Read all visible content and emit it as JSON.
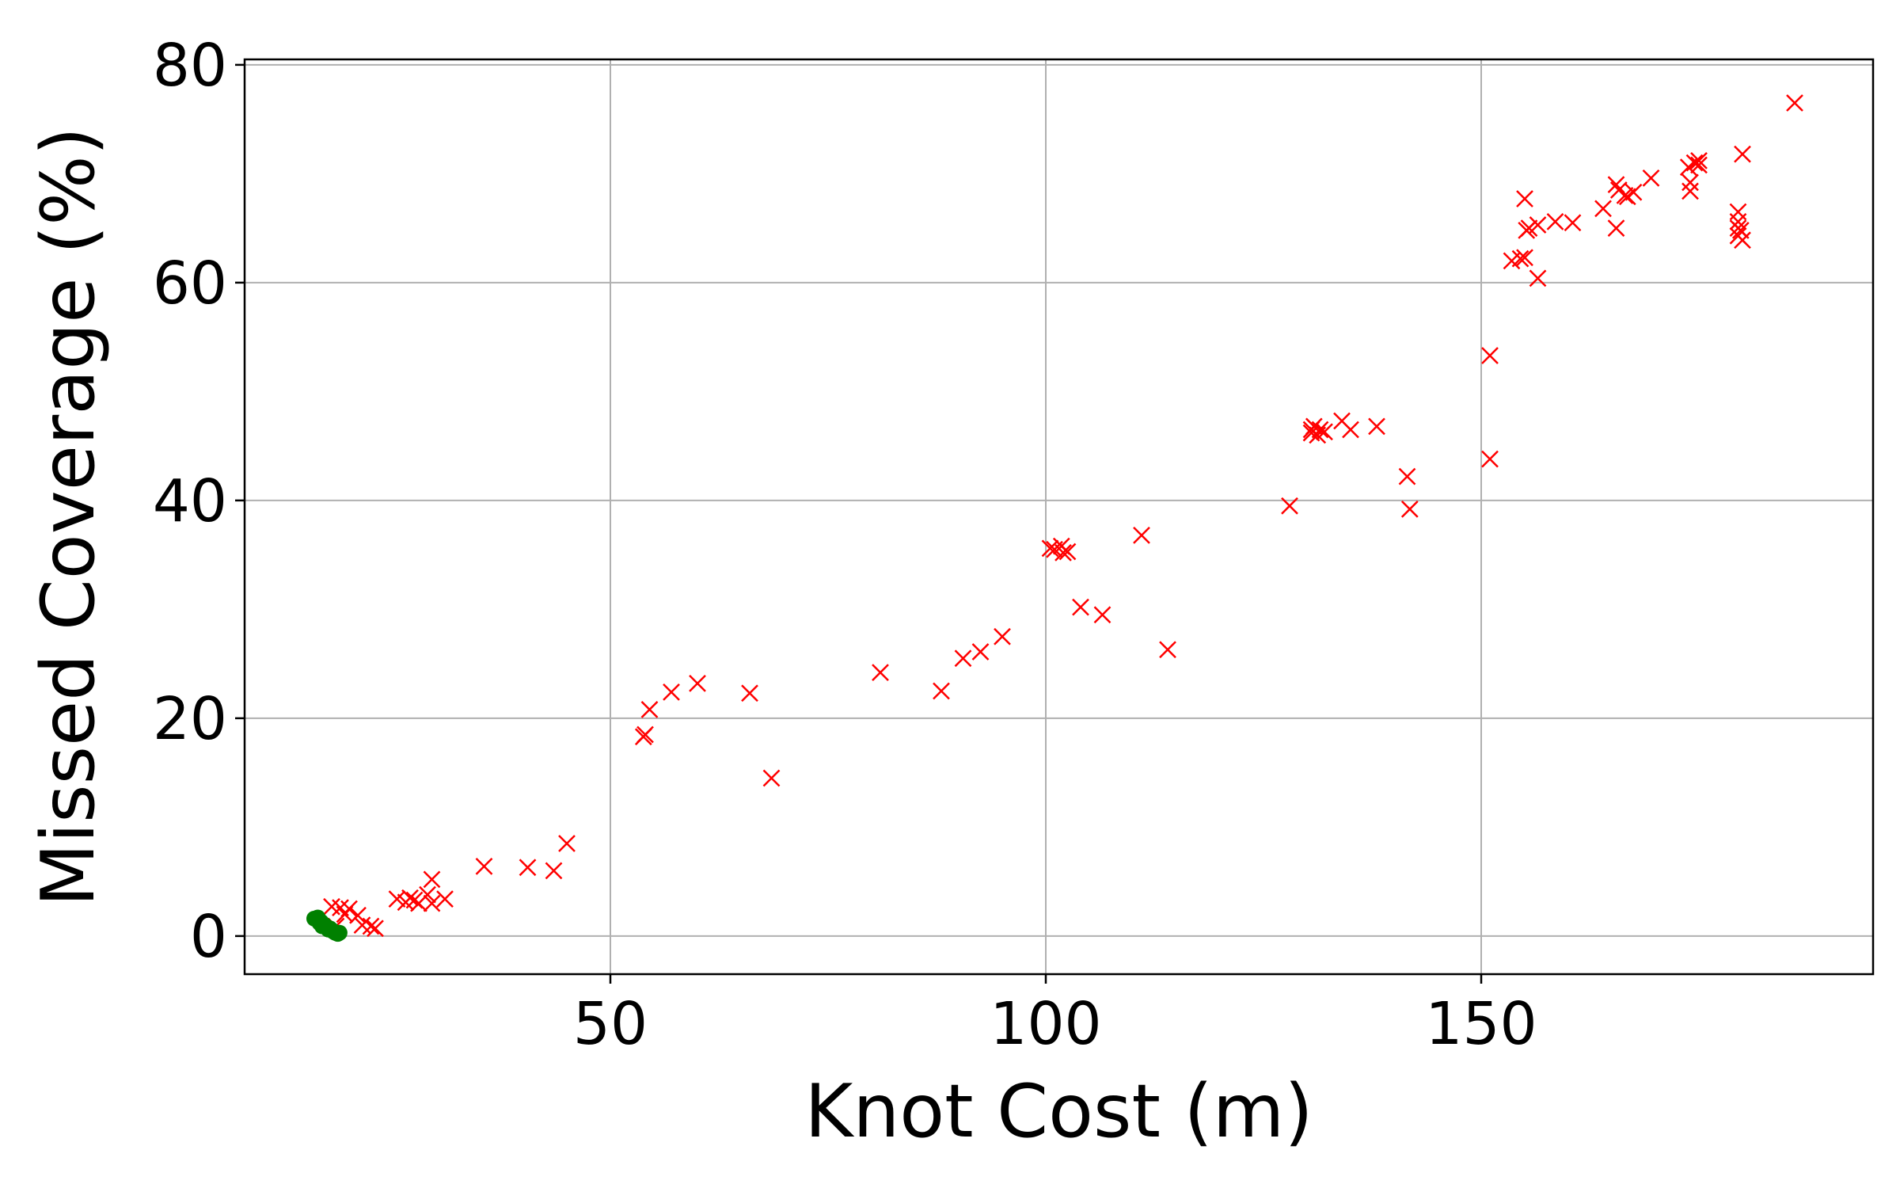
{
  "chart_data": {
    "type": "scatter",
    "xlabel": "Knot Cost (m)",
    "ylabel": "Missed Coverage (%)",
    "xlim": [
      8,
      195
    ],
    "ylim": [
      -3.5,
      80.5
    ],
    "xticks": [
      50,
      100,
      150
    ],
    "yticks": [
      0,
      20,
      40,
      60,
      80
    ],
    "grid": true,
    "legend": "none",
    "series": [
      {
        "marker": "x",
        "color": "#ff0000",
        "points": [
          [
            186,
            76.5
          ],
          [
            180,
            71.8
          ],
          [
            175,
            71.2
          ],
          [
            175,
            70.8
          ],
          [
            174.5,
            71.0
          ],
          [
            174,
            69.2
          ],
          [
            174,
            68.4
          ],
          [
            173.8,
            70.6
          ],
          [
            179.5,
            66.5
          ],
          [
            179.5,
            65.6
          ],
          [
            179.8,
            64.8
          ],
          [
            179.5,
            64.3
          ],
          [
            180,
            63.9
          ],
          [
            179.5,
            65.0
          ],
          [
            169.5,
            69.6
          ],
          [
            167.5,
            68.3
          ],
          [
            166.8,
            67.9
          ],
          [
            165.5,
            69.0
          ],
          [
            165.8,
            68.5
          ],
          [
            166.5,
            68.0
          ],
          [
            164,
            66.8
          ],
          [
            165.5,
            65.0
          ],
          [
            160.5,
            65.5
          ],
          [
            158.5,
            65.6
          ],
          [
            156.5,
            65.3
          ],
          [
            155.5,
            65.0
          ],
          [
            155,
            67.7
          ],
          [
            155.2,
            64.8
          ],
          [
            154.5,
            62.2
          ],
          [
            155,
            62.3
          ],
          [
            156.5,
            60.4
          ],
          [
            153.5,
            62.0
          ],
          [
            151,
            53.3
          ],
          [
            151,
            43.8
          ],
          [
            138,
            46.8
          ],
          [
            135,
            46.5
          ],
          [
            134,
            47.3
          ],
          [
            132,
            46.3
          ],
          [
            130.5,
            46.5
          ],
          [
            131.2,
            46.0
          ],
          [
            130.5,
            46.2
          ],
          [
            130.8,
            46.8
          ],
          [
            131.5,
            46.5
          ],
          [
            128,
            39.5
          ],
          [
            141.5,
            42.2
          ],
          [
            141.8,
            39.2
          ],
          [
            111,
            36.8
          ],
          [
            114,
            26.3
          ],
          [
            104,
            30.2
          ],
          [
            106.5,
            29.5
          ],
          [
            101,
            35.5
          ],
          [
            102,
            35.2
          ],
          [
            101.8,
            35.8
          ],
          [
            102.5,
            35.3
          ],
          [
            100.5,
            35.6
          ],
          [
            95,
            27.5
          ],
          [
            92.5,
            26.1
          ],
          [
            90.5,
            25.5
          ],
          [
            88,
            22.5
          ],
          [
            81,
            24.2
          ],
          [
            66,
            22.3
          ],
          [
            68.5,
            14.5
          ],
          [
            60,
            23.2
          ],
          [
            57,
            22.4
          ],
          [
            54.5,
            20.8
          ],
          [
            53.8,
            18.3
          ],
          [
            54,
            18.5
          ],
          [
            45,
            8.5
          ],
          [
            43.5,
            6.0
          ],
          [
            40.5,
            6.3
          ],
          [
            35.5,
            6.4
          ],
          [
            31,
            3.4
          ],
          [
            29.5,
            5.2
          ],
          [
            29,
            3.8
          ],
          [
            28,
            3.0
          ],
          [
            27.5,
            3.3
          ],
          [
            27,
            3.5
          ],
          [
            26.5,
            3.1
          ],
          [
            25.5,
            3.4
          ],
          [
            29.5,
            3.0
          ],
          [
            23,
            0.7
          ],
          [
            22.5,
            0.9
          ],
          [
            21,
            1.9
          ],
          [
            20,
            2.5
          ],
          [
            19.5,
            2.0
          ],
          [
            19,
            2.6
          ],
          [
            18,
            2.7
          ],
          [
            18.5,
            0.9
          ],
          [
            21.5,
            1.0
          ]
        ]
      },
      {
        "marker": "o",
        "color": "#008000",
        "points": [
          [
            16,
            1.6
          ],
          [
            16.3,
            1.5
          ],
          [
            16.6,
            1.2
          ],
          [
            16.9,
            0.9
          ],
          [
            17.2,
            1.0
          ],
          [
            17.5,
            0.8
          ],
          [
            17.8,
            0.7
          ],
          [
            18.1,
            0.5
          ],
          [
            18.4,
            0.3
          ],
          [
            18.7,
            0.2
          ],
          [
            16.8,
            1.3
          ],
          [
            17.6,
            0.6
          ],
          [
            18.2,
            0.4
          ],
          [
            16.4,
            1.7
          ],
          [
            17.0,
            1.1
          ],
          [
            18.9,
            0.3
          ]
        ]
      }
    ]
  }
}
